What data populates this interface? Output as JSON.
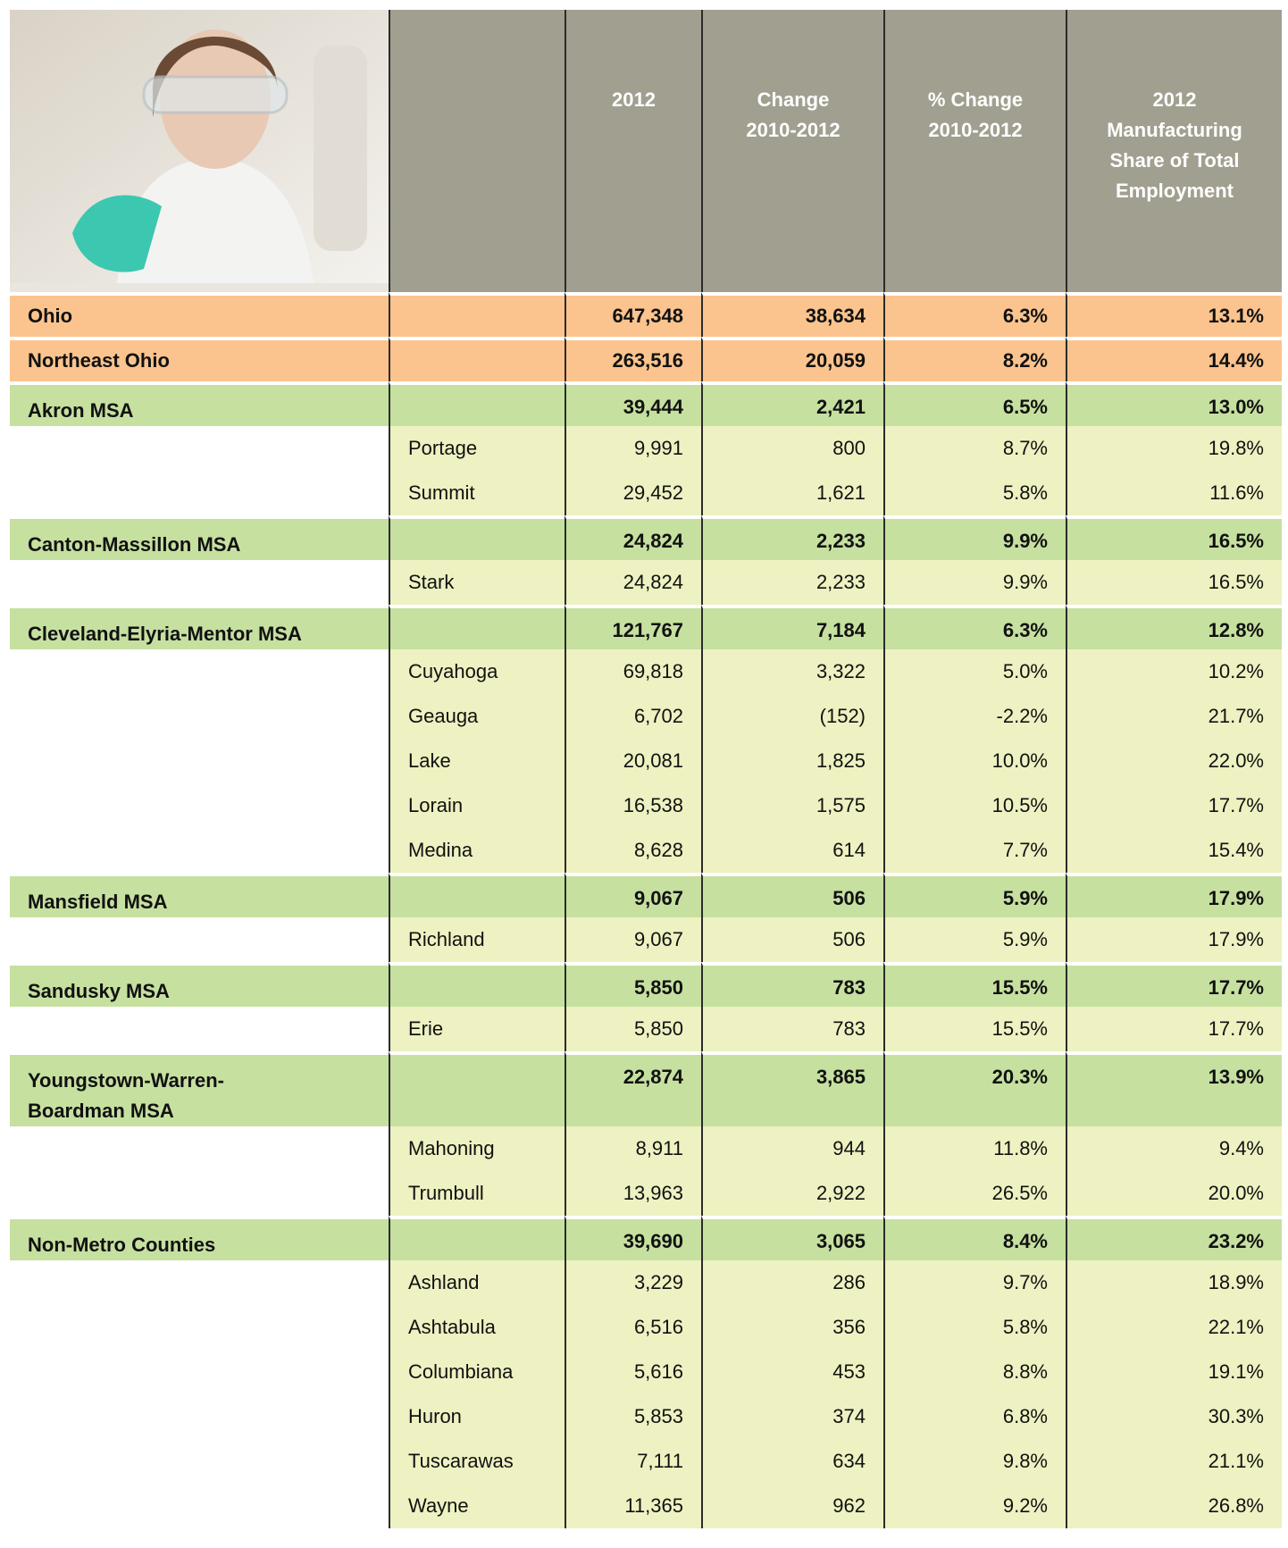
{
  "header": {
    "columns": [
      {
        "lines": [
          "2012"
        ]
      },
      {
        "lines": [
          "Change",
          "2010-2012"
        ]
      },
      {
        "lines": [
          "% Change",
          "2010-2012"
        ]
      },
      {
        "lines": [
          "2012",
          "Manufacturing",
          "Share of Total",
          "Employment"
        ]
      }
    ]
  },
  "totals": [
    {
      "label": "Ohio",
      "cells": [
        "647,348",
        "38,634",
        "6.3%",
        "13.1%"
      ]
    },
    {
      "label": "Northeast Ohio",
      "cells": [
        "263,516",
        "20,059",
        "8.2%",
        "14.4%"
      ]
    }
  ],
  "groups": [
    {
      "msa": {
        "label": "Akron MSA",
        "cells": [
          "39,444",
          "2,421",
          "6.5%",
          "13.0%"
        ]
      },
      "counties": [
        {
          "label": "Portage",
          "cells": [
            "9,991",
            "800",
            "8.7%",
            "19.8%"
          ]
        },
        {
          "label": "Summit",
          "cells": [
            "29,452",
            "1,621",
            "5.8%",
            "11.6%"
          ]
        }
      ]
    },
    {
      "msa": {
        "label": "Canton-Massillon MSA",
        "cells": [
          "24,824",
          "2,233",
          "9.9%",
          "16.5%"
        ]
      },
      "counties": [
        {
          "label": "Stark",
          "cells": [
            "24,824",
            "2,233",
            "9.9%",
            "16.5%"
          ]
        }
      ]
    },
    {
      "msa": {
        "label": "Cleveland-Elyria-Mentor MSA",
        "cells": [
          "121,767",
          "7,184",
          "6.3%",
          "12.8%"
        ]
      },
      "counties": [
        {
          "label": "Cuyahoga",
          "cells": [
            "69,818",
            "3,322",
            "5.0%",
            "10.2%"
          ]
        },
        {
          "label": "Geauga",
          "cells": [
            "6,702",
            "(152)",
            "-2.2%",
            "21.7%"
          ]
        },
        {
          "label": "Lake",
          "cells": [
            "20,081",
            "1,825",
            "10.0%",
            "22.0%"
          ]
        },
        {
          "label": "Lorain",
          "cells": [
            "16,538",
            "1,575",
            "10.5%",
            "17.7%"
          ]
        },
        {
          "label": "Medina",
          "cells": [
            "8,628",
            "614",
            "7.7%",
            "15.4%"
          ]
        }
      ]
    },
    {
      "msa": {
        "label": "Mansfield MSA",
        "cells": [
          "9,067",
          "506",
          "5.9%",
          "17.9%"
        ]
      },
      "counties": [
        {
          "label": "Richland",
          "cells": [
            "9,067",
            "506",
            "5.9%",
            "17.9%"
          ]
        }
      ]
    },
    {
      "msa": {
        "label": "Sandusky MSA",
        "cells": [
          "5,850",
          "783",
          "15.5%",
          "17.7%"
        ]
      },
      "counties": [
        {
          "label": "Erie",
          "cells": [
            "5,850",
            "783",
            "15.5%",
            "17.7%"
          ]
        }
      ]
    },
    {
      "msa": {
        "label": "Youngstown-Warren-Boardman MSA",
        "cells": [
          "22,874",
          "3,865",
          "20.3%",
          "13.9%"
        ]
      },
      "counties": [
        {
          "label": "Mahoning",
          "cells": [
            "8,911",
            "944",
            "11.8%",
            "9.4%"
          ]
        },
        {
          "label": "Trumbull",
          "cells": [
            "13,963",
            "2,922",
            "26.5%",
            "20.0%"
          ]
        }
      ]
    },
    {
      "msa": {
        "label": "Non-Metro Counties",
        "cells": [
          "39,690",
          "3,065",
          "8.4%",
          "23.2%"
        ]
      },
      "counties": [
        {
          "label": "Ashland",
          "cells": [
            "3,229",
            "286",
            "9.7%",
            "18.9%"
          ]
        },
        {
          "label": "Ashtabula",
          "cells": [
            "6,516",
            "356",
            "5.8%",
            "22.1%"
          ]
        },
        {
          "label": "Columbiana",
          "cells": [
            "5,616",
            "453",
            "8.8%",
            "19.1%"
          ]
        },
        {
          "label": "Huron",
          "cells": [
            "5,853",
            "374",
            "6.8%",
            "30.3%"
          ]
        },
        {
          "label": "Tuscarawas",
          "cells": [
            "7,111",
            "634",
            "9.8%",
            "21.1%"
          ]
        },
        {
          "label": "Wayne",
          "cells": [
            "11,365",
            "962",
            "9.2%",
            "26.8%"
          ]
        }
      ]
    }
  ]
}
